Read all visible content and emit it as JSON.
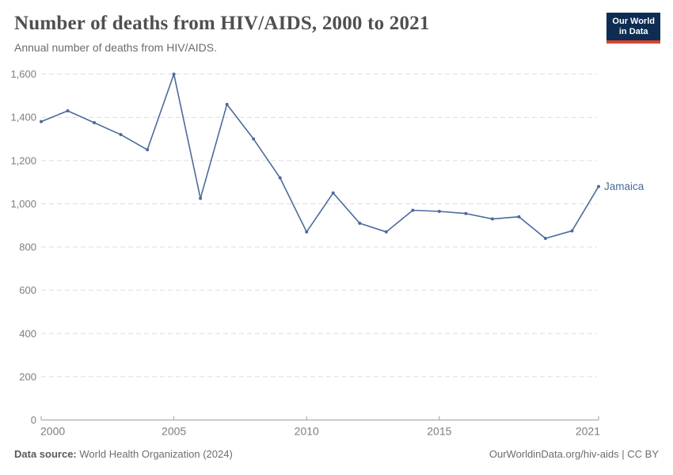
{
  "header": {
    "title": "Number of deaths from HIV/AIDS, 2000 to 2021",
    "subtitle": "Annual number of deaths from HIV/AIDS.",
    "logo": {
      "line1": "Our World",
      "line2": "in Data"
    }
  },
  "footer": {
    "source_label": "Data source:",
    "source_value": "World Health Organization (2024)",
    "credit": "OurWorldinData.org/hiv-aids | CC BY"
  },
  "colors": {
    "series_blue": "#4c6a9c",
    "logo_navy": "#0e2d52",
    "logo_red": "#d8432f",
    "grid_gray": "#dddddd",
    "axis_gray": "#9e9e9e",
    "tick_label_gray": "#7e7e7e"
  },
  "chart_data": {
    "type": "line",
    "title": "Number of deaths from HIV/AIDS, 2000 to 2021",
    "subtitle": "Annual number of deaths from HIV/AIDS.",
    "x": [
      2000,
      2001,
      2002,
      2003,
      2004,
      2005,
      2006,
      2007,
      2008,
      2009,
      2010,
      2011,
      2012,
      2013,
      2014,
      2015,
      2016,
      2017,
      2018,
      2019,
      2020,
      2021
    ],
    "series": [
      {
        "name": "Jamaica",
        "color": "#4c6a9c",
        "values": [
          1380,
          1430,
          1375,
          1320,
          1250,
          1600,
          1025,
          1460,
          1300,
          1120,
          870,
          1050,
          910,
          870,
          970,
          965,
          955,
          930,
          940,
          840,
          875,
          1080
        ]
      }
    ],
    "xlabel": "",
    "ylabel": "",
    "xlim": [
      2000,
      2021
    ],
    "ylim": [
      0,
      1600
    ],
    "xticks": [
      2000,
      2005,
      2010,
      2015,
      2021
    ],
    "xtick_labels": [
      "2000",
      "2005",
      "2010",
      "2015",
      "2021"
    ],
    "yticks": [
      0,
      200,
      400,
      600,
      800,
      1000,
      1200,
      1400,
      1600
    ],
    "ytick_labels": [
      "0",
      "200",
      "400",
      "600",
      "800",
      "1,000",
      "1,200",
      "1,400",
      "1,600"
    ],
    "grid": "horizontal-dashed",
    "legend": "end-of-line-label"
  }
}
